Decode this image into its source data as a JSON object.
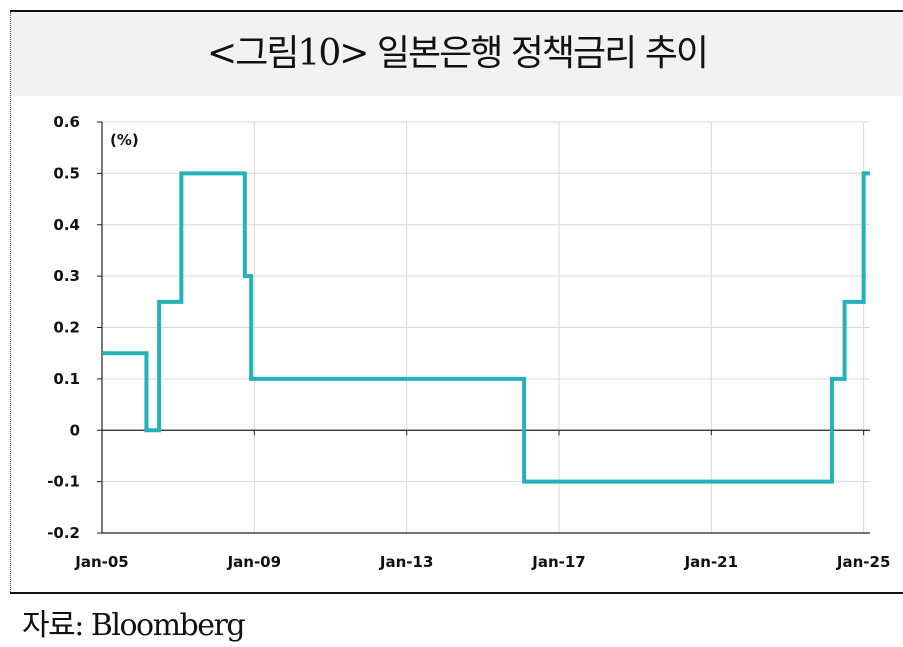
{
  "title": "<그림10> 일본은행 정책금리 추이",
  "source": "자료: Bloomberg",
  "colors": {
    "line": "#22b2b7",
    "grid": "#d9d9d9",
    "axis": "#222222",
    "title_band": "#f2f2f2"
  },
  "chart_data": {
    "type": "line",
    "title": "<그림10> 일본은행 정책금리 추이",
    "unit_label": "(%)",
    "xlabel": "",
    "ylabel": "",
    "ylim": [
      -0.2,
      0.6
    ],
    "yticks": [
      -0.2,
      -0.1,
      0,
      0.1,
      0.2,
      0.3,
      0.4,
      0.5,
      0.6
    ],
    "ytick_labels": [
      "-0.2",
      "-0.1",
      "0",
      "0.1",
      "0.2",
      "0.3",
      "0.4",
      "0.5",
      "0.6"
    ],
    "xlim": [
      "2005-01",
      "2025-03"
    ],
    "xticks": [
      "Jan-05",
      "Jan-09",
      "Jan-13",
      "Jan-17",
      "Jan-21",
      "Jan-25"
    ],
    "grid": true,
    "series": [
      {
        "step": true,
        "points": [
          {
            "x": "2005-01",
            "y": 0.15
          },
          {
            "x": "2006-03",
            "y": 0.0
          },
          {
            "x": "2006-07",
            "y": 0.25
          },
          {
            "x": "2007-02",
            "y": 0.5
          },
          {
            "x": "2008-10",
            "y": 0.3
          },
          {
            "x": "2008-12",
            "y": 0.1
          },
          {
            "x": "2016-02",
            "y": -0.1
          },
          {
            "x": "2024-03",
            "y": 0.1
          },
          {
            "x": "2024-07",
            "y": 0.25
          },
          {
            "x": "2025-01",
            "y": 0.5
          },
          {
            "x": "2025-03",
            "y": 0.5
          }
        ]
      }
    ]
  }
}
